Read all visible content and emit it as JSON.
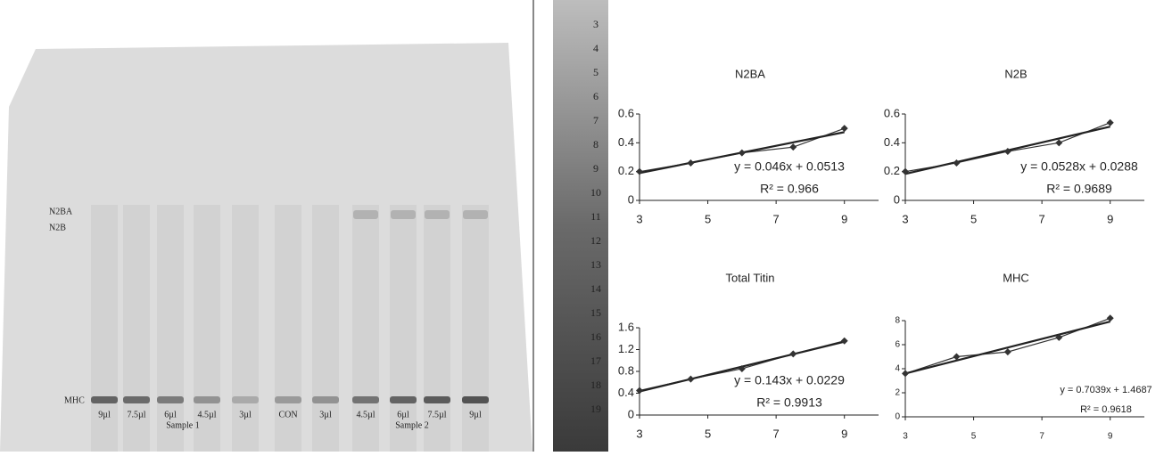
{
  "gel": {
    "band_labels": [
      "N2BA",
      "N2B",
      "MHC"
    ],
    "lane_labels": [
      "9µl",
      "7.5µl",
      "6µl",
      "4.5µl",
      "3µl",
      "CON",
      "3µl",
      "4.5µl",
      "6µl",
      "7.5µl",
      "9µl"
    ],
    "group_labels": [
      "Sample 1",
      "Sample 2"
    ]
  },
  "strip_labels": [
    "3",
    "4",
    "5",
    "6",
    "7",
    "8",
    "9",
    "10",
    "11",
    "12",
    "13",
    "14",
    "15",
    "16",
    "17",
    "18",
    "19"
  ],
  "chart_data": [
    {
      "type": "line",
      "title": "N2BA",
      "x": [
        3,
        4.5,
        6,
        7.5,
        9
      ],
      "series": [
        {
          "color": "#333333",
          "values": [
            0.2,
            0.26,
            0.33,
            0.37,
            0.5
          ]
        }
      ],
      "xlim": [
        3,
        10
      ],
      "xticks": [
        3,
        5,
        7,
        9
      ],
      "ylim": [
        0,
        0.6
      ],
      "yticks": [
        0,
        0.2,
        0.4,
        0.6
      ],
      "annotations": [
        "y = 0.046x + 0.0513",
        "R² = 0.966"
      ],
      "trendline": true
    },
    {
      "type": "line",
      "title": "N2B",
      "x": [
        3,
        4.5,
        6,
        7.5,
        9
      ],
      "series": [
        {
          "color": "#333333",
          "values": [
            0.2,
            0.26,
            0.34,
            0.4,
            0.54
          ]
        }
      ],
      "xlim": [
        3,
        10
      ],
      "xticks": [
        3,
        5,
        7,
        9
      ],
      "ylim": [
        0,
        0.6
      ],
      "yticks": [
        0,
        0.2,
        0.4,
        0.6
      ],
      "annotations": [
        "y = 0.0528x + 0.0288",
        "R² = 0.9689"
      ],
      "trendline": true
    },
    {
      "type": "line",
      "title": "Total Titin",
      "x": [
        3,
        4.5,
        6,
        7.5,
        9
      ],
      "series": [
        {
          "color": "#333333",
          "values": [
            0.45,
            0.66,
            0.85,
            1.12,
            1.36
          ]
        }
      ],
      "xlim": [
        3,
        10
      ],
      "xticks": [
        3,
        5,
        7,
        9
      ],
      "ylim": [
        0,
        1.6
      ],
      "yticks": [
        0,
        0.4,
        0.8,
        1.2,
        1.6
      ],
      "annotations": [
        "y = 0.143x + 0.0229",
        "R² = 0.9913"
      ],
      "trendline": true
    },
    {
      "type": "line",
      "title": "MHC",
      "x": [
        3,
        4.5,
        6,
        7.5,
        9
      ],
      "series": [
        {
          "color": "#333333",
          "values": [
            3.6,
            5.0,
            5.4,
            6.6,
            8.2
          ]
        }
      ],
      "xlim": [
        3,
        10
      ],
      "xticks": [
        3,
        5,
        7,
        9
      ],
      "ylim": [
        0,
        8
      ],
      "yticks": [
        0,
        2,
        4,
        6,
        8
      ],
      "annotations": [
        "y = 0.7039x + 1.4687",
        "R² = 0.9618"
      ],
      "trendline": true
    }
  ]
}
